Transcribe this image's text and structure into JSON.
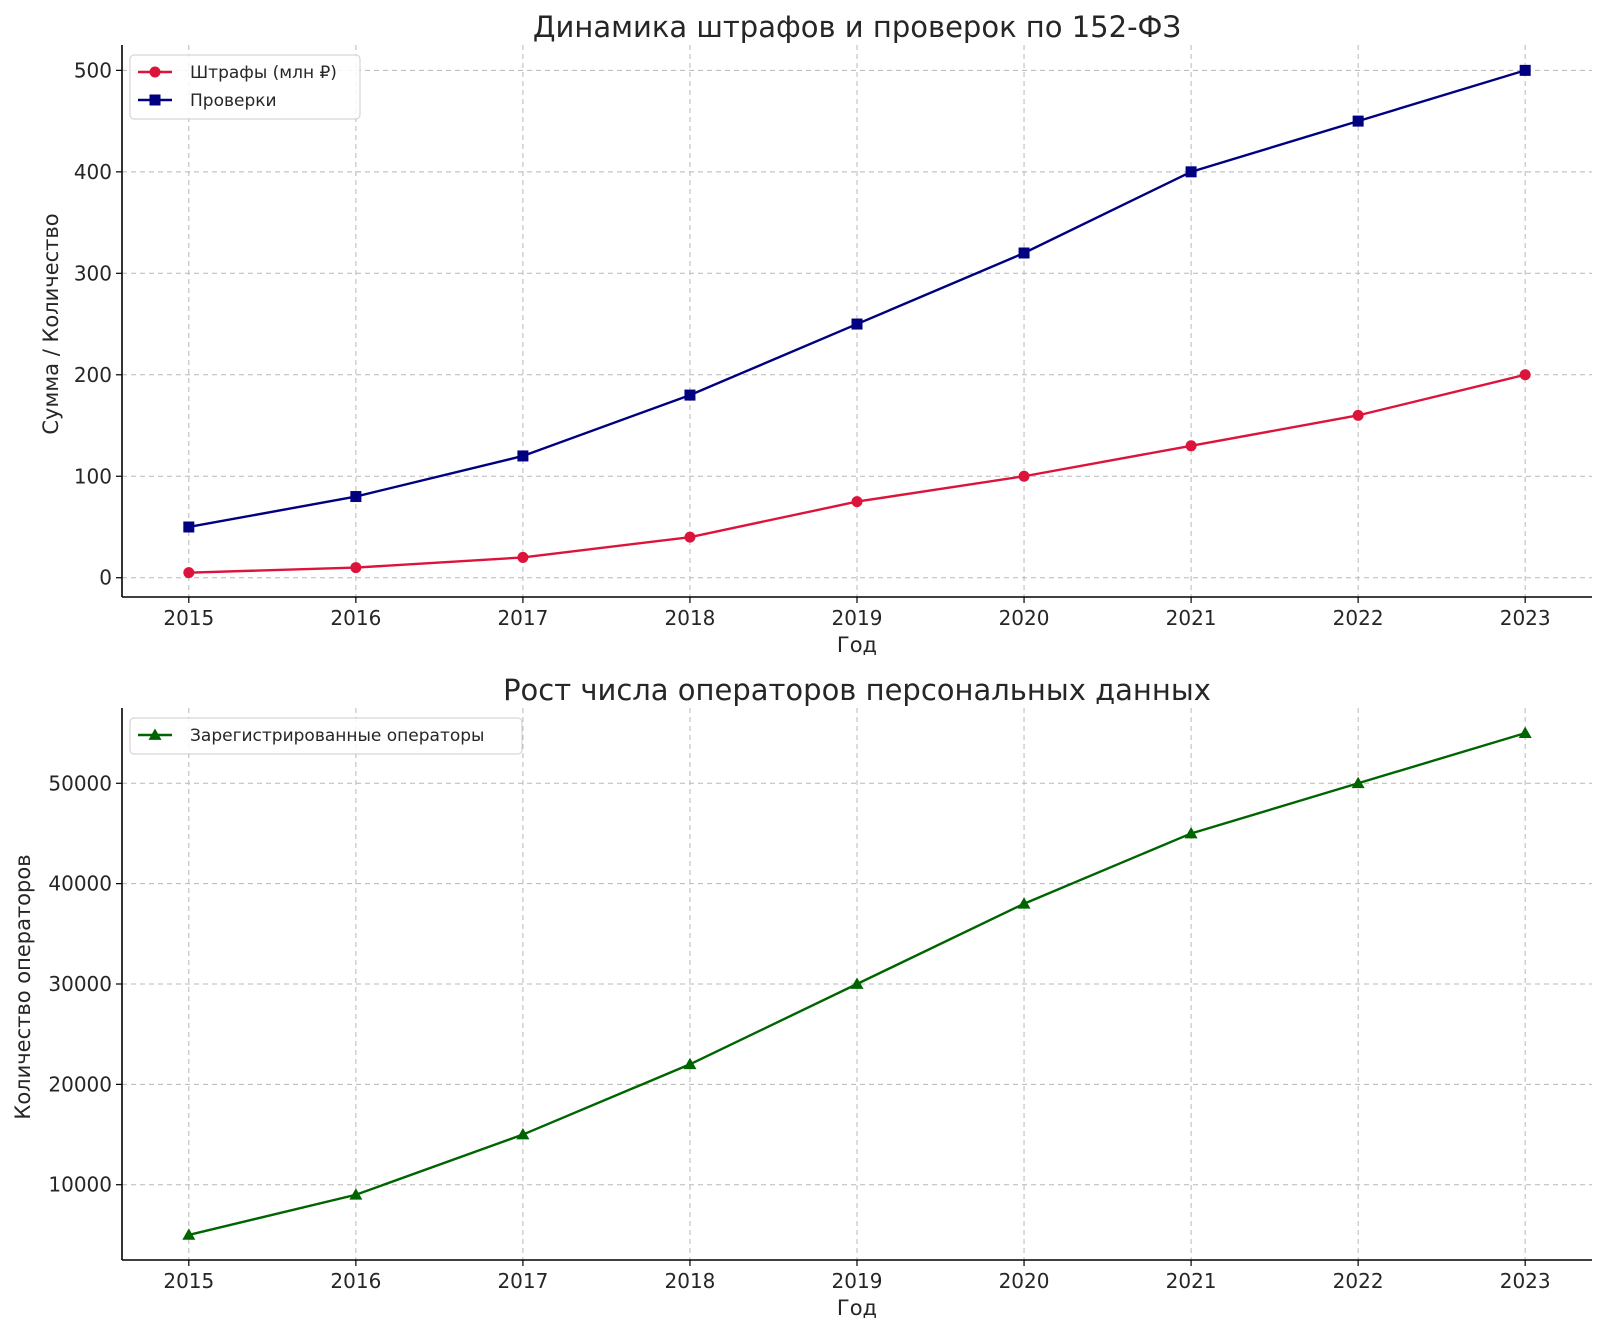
{
  "chart_data": [
    {
      "type": "line",
      "title": "Динамика штрафов и проверок по 152-ФЗ",
      "xlabel": "Год",
      "ylabel": "Сумма / Количество",
      "x": [
        2015,
        2016,
        2017,
        2018,
        2019,
        2020,
        2021,
        2022,
        2023
      ],
      "xticks": [
        "2015",
        "2016",
        "2017",
        "2018",
        "2019",
        "2020",
        "2021",
        "2022",
        "2023"
      ],
      "yticks": [
        0,
        100,
        200,
        300,
        400,
        500
      ],
      "ytick_labels": [
        "0",
        "100",
        "200",
        "300",
        "400",
        "500"
      ],
      "ylim": [
        -19,
        525
      ],
      "grid": true,
      "legend_position": "upper-left",
      "series": [
        {
          "name": "Штрафы (млн ₽)",
          "color": "#dc143c",
          "marker": "circle",
          "values": [
            5,
            10,
            20,
            40,
            75,
            100,
            130,
            160,
            200
          ]
        },
        {
          "name": "Проверки",
          "color": "#000080",
          "marker": "square",
          "values": [
            50,
            80,
            120,
            180,
            250,
            320,
            400,
            450,
            500
          ]
        }
      ]
    },
    {
      "type": "line",
      "title": "Рост числа операторов персональных данных",
      "xlabel": "Год",
      "ylabel": "Количество операторов",
      "x": [
        2015,
        2016,
        2017,
        2018,
        2019,
        2020,
        2021,
        2022,
        2023
      ],
      "xticks": [
        "2015",
        "2016",
        "2017",
        "2018",
        "2019",
        "2020",
        "2021",
        "2022",
        "2023"
      ],
      "yticks": [
        10000,
        20000,
        30000,
        40000,
        50000
      ],
      "ytick_labels": [
        "10000",
        "20000",
        "30000",
        "40000",
        "50000"
      ],
      "ylim": [
        2500,
        57500
      ],
      "grid": true,
      "legend_position": "upper-left",
      "series": [
        {
          "name": "Зарегистрированные операторы",
          "color": "#006400",
          "marker": "triangle",
          "values": [
            5000,
            9000,
            15000,
            22000,
            30000,
            38000,
            45000,
            50000,
            55000
          ]
        }
      ]
    }
  ]
}
